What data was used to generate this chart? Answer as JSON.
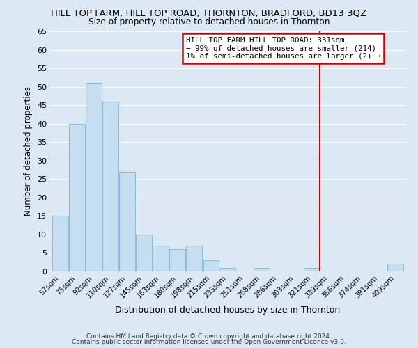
{
  "title": "HILL TOP FARM, HILL TOP ROAD, THORNTON, BRADFORD, BD13 3QZ",
  "subtitle": "Size of property relative to detached houses in Thornton",
  "xlabel": "Distribution of detached houses by size in Thornton",
  "ylabel": "Number of detached properties",
  "bar_labels": [
    "57sqm",
    "75sqm",
    "92sqm",
    "110sqm",
    "127sqm",
    "145sqm",
    "163sqm",
    "180sqm",
    "198sqm",
    "215sqm",
    "233sqm",
    "251sqm",
    "268sqm",
    "286sqm",
    "303sqm",
    "321sqm",
    "339sqm",
    "356sqm",
    "374sqm",
    "391sqm",
    "409sqm"
  ],
  "bar_heights": [
    15,
    40,
    51,
    46,
    27,
    10,
    7,
    6,
    7,
    3,
    1,
    0,
    1,
    0,
    0,
    1,
    0,
    0,
    0,
    0,
    2
  ],
  "bar_color": "#c5dff0",
  "bar_edge_color": "#8bbdd9",
  "ylim": [
    0,
    65
  ],
  "yticks": [
    0,
    5,
    10,
    15,
    20,
    25,
    30,
    35,
    40,
    45,
    50,
    55,
    60,
    65
  ],
  "vline_color": "#cc0000",
  "annotation_title": "HILL TOP FARM HILL TOP ROAD: 331sqm",
  "annotation_line1": "← 99% of detached houses are smaller (214)",
  "annotation_line2": "1% of semi-detached houses are larger (2) →",
  "annotation_box_color": "#ffffff",
  "annotation_border_color": "#cc0000",
  "footer_line1": "Contains HM Land Registry data © Crown copyright and database right 2024.",
  "footer_line2": "Contains public sector information licensed under the Open Government Licence v3.0.",
  "background_color": "#dde8f5",
  "plot_bg_color": "#dde8f5",
  "grid_color": "#ffffff"
}
